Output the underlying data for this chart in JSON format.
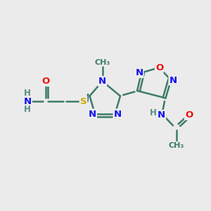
{
  "background_color": "#ebebeb",
  "bond_color": "#3d7a6a",
  "bond_width": 1.8,
  "atom_colors": {
    "N": "#1010ee",
    "O": "#ee1010",
    "S": "#ccaa00",
    "C": "#3d7a6a",
    "H": "#5a8a80"
  },
  "font_size": 9.5,
  "figsize": [
    3.0,
    3.0
  ],
  "dpi": 100
}
